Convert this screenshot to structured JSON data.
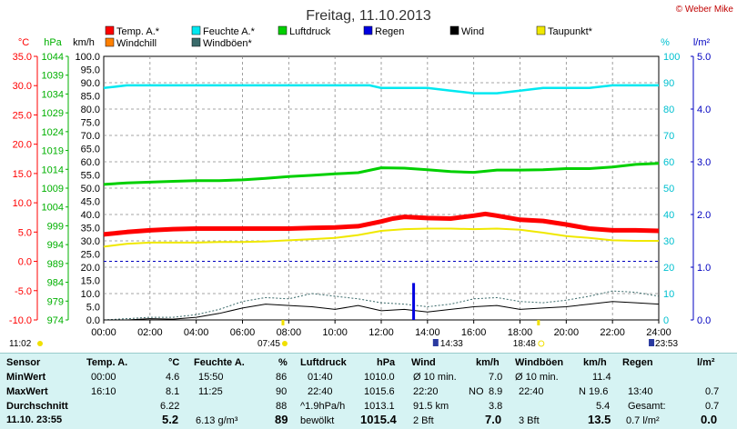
{
  "title": "Freitag, 11.10.2013",
  "watermark": "© Weber Mike",
  "legend": [
    {
      "label": "Temp. A.*",
      "color": "#ff0000"
    },
    {
      "label": "Feuchte A.*",
      "color": "#00e8f0"
    },
    {
      "label": "Luftdruck",
      "color": "#00d000"
    },
    {
      "label": "Regen",
      "color": "#0000e0"
    },
    {
      "label": "Wind",
      "color": "#000000"
    },
    {
      "label": "Taupunkt*",
      "color": "#f0e800"
    },
    {
      "label": "Windchill",
      "color": "#ff8000"
    },
    {
      "label": "Windböen*",
      "color": "#3a6a6a"
    }
  ],
  "axes": {
    "celsius": {
      "unit": "°C",
      "ticks": [
        "35.0",
        "30.0",
        "25.0",
        "20.0",
        "15.0",
        "10.0",
        "5.0",
        "0.0",
        "-5.0",
        "-10.0"
      ],
      "color": "#ff0000"
    },
    "hpa": {
      "unit": "hPa",
      "ticks": [
        "1044",
        "1039",
        "1034",
        "1029",
        "1024",
        "1019",
        "1014",
        "1009",
        "1004",
        "999",
        "994",
        "989",
        "984",
        "979",
        "974"
      ],
      "color": "#00b000"
    },
    "kmh": {
      "unit": "km/h",
      "ticks": [
        "100.0",
        "95.0",
        "90.0",
        "85.0",
        "80.0",
        "75.0",
        "70.0",
        "65.0",
        "60.0",
        "55.0",
        "50.0",
        "45.0",
        "40.0",
        "35.0",
        "30.0",
        "25.0",
        "20.0",
        "15.0",
        "10.0",
        "5.0",
        "0.0"
      ],
      "color": "#000000"
    },
    "percent": {
      "unit": "%",
      "ticks": [
        "100",
        "90",
        "80",
        "70",
        "60",
        "50",
        "40",
        "30",
        "20",
        "10",
        "0"
      ],
      "color": "#00c0d0"
    },
    "rain": {
      "unit": "l/m²",
      "ticks": [
        "5.0",
        "4.0",
        "3.0",
        "2.0",
        "1.0",
        "0.0"
      ],
      "color": "#0000c0"
    },
    "time": {
      "ticks": [
        "00:00",
        "02:00",
        "04:00",
        "06:00",
        "08:00",
        "10:00",
        "12:00",
        "14:00",
        "16:00",
        "18:00",
        "20:00",
        "22:00",
        "24:00"
      ]
    }
  },
  "sun_events": {
    "moon_left": "11:02",
    "sunrise": "07:45",
    "moon_rise": "14:33",
    "sunset": "18:48",
    "moon_set": "23:53"
  },
  "chart_data": {
    "type": "line",
    "x_unit": "hours",
    "xlim": [
      0,
      24
    ],
    "series": [
      {
        "name": "Temp. A.*",
        "axis": "°C",
        "color": "#ff0000",
        "x": [
          0,
          1,
          2,
          3,
          4,
          5,
          6,
          7,
          8,
          9,
          10,
          11,
          12,
          12.5,
          13,
          14,
          15,
          16,
          16.5,
          17,
          18,
          19,
          20,
          21,
          22,
          23,
          24
        ],
        "y": [
          4.6,
          5.0,
          5.3,
          5.5,
          5.6,
          5.6,
          5.6,
          5.6,
          5.6,
          5.7,
          5.8,
          6.0,
          6.8,
          7.3,
          7.6,
          7.4,
          7.3,
          7.8,
          8.1,
          7.8,
          7.1,
          6.9,
          6.3,
          5.6,
          5.3,
          5.3,
          5.2
        ]
      },
      {
        "name": "Feuchte A.*",
        "axis": "%",
        "color": "#00e8f0",
        "x": [
          0,
          1,
          2,
          3,
          4,
          5,
          6,
          7,
          8,
          9,
          10,
          11,
          11.5,
          12,
          13,
          14,
          15,
          16,
          17,
          18,
          19,
          20,
          21,
          22,
          23,
          24
        ],
        "y": [
          88,
          89,
          89,
          89,
          89,
          89,
          89,
          89,
          89,
          89,
          89,
          89,
          89,
          88,
          88,
          88,
          87,
          86,
          86,
          87,
          88,
          88,
          88,
          89,
          89,
          89
        ]
      },
      {
        "name": "Luftdruck",
        "axis": "hPa",
        "color": "#00d000",
        "x": [
          0,
          1,
          2,
          3,
          4,
          5,
          6,
          7,
          8,
          9,
          10,
          11,
          12,
          13,
          14,
          15,
          16,
          17,
          18,
          19,
          20,
          21,
          22,
          23,
          24
        ],
        "y": [
          1010.0,
          1010.4,
          1010.6,
          1010.8,
          1011.0,
          1011.0,
          1011.2,
          1011.6,
          1012.1,
          1012.4,
          1012.8,
          1013.1,
          1014.4,
          1014.3,
          1013.9,
          1013.4,
          1013.2,
          1013.8,
          1013.8,
          1013.9,
          1014.2,
          1014.2,
          1014.6,
          1015.3,
          1015.6
        ]
      },
      {
        "name": "Taupunkt*",
        "axis": "°C",
        "color": "#f0e800",
        "x": [
          0,
          1,
          2,
          3,
          4,
          5,
          6,
          7,
          8,
          9,
          10,
          11,
          12,
          13,
          14,
          15,
          16,
          17,
          18,
          19,
          20,
          21,
          22,
          23,
          24
        ],
        "y": [
          2.5,
          3.0,
          3.2,
          3.2,
          3.2,
          3.3,
          3.3,
          3.4,
          3.6,
          3.8,
          4.0,
          4.5,
          5.2,
          5.5,
          5.6,
          5.6,
          5.5,
          5.6,
          5.4,
          4.9,
          4.3,
          4.0,
          3.6,
          3.5,
          3.5
        ]
      },
      {
        "name": "Wind",
        "axis": "km/h",
        "color": "#000000",
        "x": [
          0,
          1,
          2,
          3,
          4,
          5,
          6,
          7,
          8,
          9,
          10,
          11,
          12,
          13,
          14,
          15,
          16,
          17,
          18,
          19,
          20,
          21,
          22,
          23,
          24
        ],
        "y": [
          0,
          0,
          0.5,
          0.3,
          1.0,
          2.5,
          4.5,
          6.0,
          5.5,
          5.0,
          4.0,
          5.5,
          3.5,
          4.0,
          3.0,
          4.0,
          5.0,
          5.5,
          4.0,
          4.5,
          5.0,
          6.0,
          7.0,
          6.5,
          6.0
        ]
      },
      {
        "name": "Windböen*",
        "axis": "km/h",
        "color": "#3a6a6a",
        "x": [
          0,
          1,
          2,
          3,
          4,
          5,
          6,
          7,
          8,
          9,
          10,
          11,
          12,
          13,
          14,
          15,
          16,
          17,
          18,
          19,
          20,
          21,
          22,
          23,
          24
        ],
        "y": [
          0,
          0.5,
          1.0,
          1.0,
          2.0,
          4.0,
          7.0,
          8.5,
          8.0,
          10.0,
          9.0,
          8.0,
          6.5,
          6.0,
          5.0,
          6.0,
          8.0,
          8.5,
          7.0,
          6.5,
          7.5,
          9.0,
          11.0,
          10.5,
          9.0
        ]
      },
      {
        "name": "Regen",
        "axis": "l/m²",
        "color": "#0000e0",
        "type": "bar",
        "x": [
          13.4
        ],
        "y": [
          0.7
        ]
      }
    ]
  },
  "table": {
    "columns": [
      {
        "header": "Sensor",
        "unit": ""
      },
      {
        "header": "Temp. A.",
        "unit": "°C"
      },
      {
        "header": "Feuchte A.",
        "unit": "%"
      },
      {
        "header": "Luftdruck",
        "unit": "hPa"
      },
      {
        "header": "Wind",
        "unit": "km/h"
      },
      {
        "header": "Windböen",
        "unit": "km/h"
      },
      {
        "header": "Regen",
        "unit": "l/m²"
      }
    ],
    "rows": {
      "min": {
        "label": "MinWert",
        "temp_time": "00:00",
        "temp": "4.6",
        "hum_time": "15:50",
        "hum": "86",
        "press_time": "01:40",
        "press": "1010.0",
        "wind_label": "Ø 10 min.",
        "wind": "7.0",
        "gust_label": "Ø 10 min.",
        "gust": "11.4",
        "rain_label": "",
        "rain": ""
      },
      "max": {
        "label": "MaxWert",
        "temp_time": "16:10",
        "temp": "8.1",
        "hum_time": "11:25",
        "hum": "90",
        "press_time": "22:40",
        "press": "1015.6",
        "wind_label": "22:20",
        "wind_dir": "NO",
        "wind": "8.9",
        "gust_label": "22:40",
        "gust_dir": "N",
        "gust": "19.6",
        "rain_label": "13:40",
        "rain": "0.7"
      },
      "avg": {
        "label": "Durchschnitt",
        "temp": "6.22",
        "hum": "88",
        "press_time": "^1.9hPa/h",
        "press": "1013.1",
        "wind_label": "91.5 km",
        "wind": "3.8",
        "gust": "5.4",
        "rain_label": "Gesamt:",
        "rain": "0.7"
      },
      "current": {
        "label": "11.10. 23:55",
        "temp": "5.2",
        "hum_extra": "6.13 g/m³",
        "hum": "89",
        "press_time": "bewölkt",
        "press": "1015.4",
        "wind_label": "2 Bft",
        "wind": "7.0",
        "gust_label": "3 Bft",
        "gust": "13.5",
        "rain_label": "0.7 l/m²",
        "rain": "0.0"
      }
    }
  }
}
